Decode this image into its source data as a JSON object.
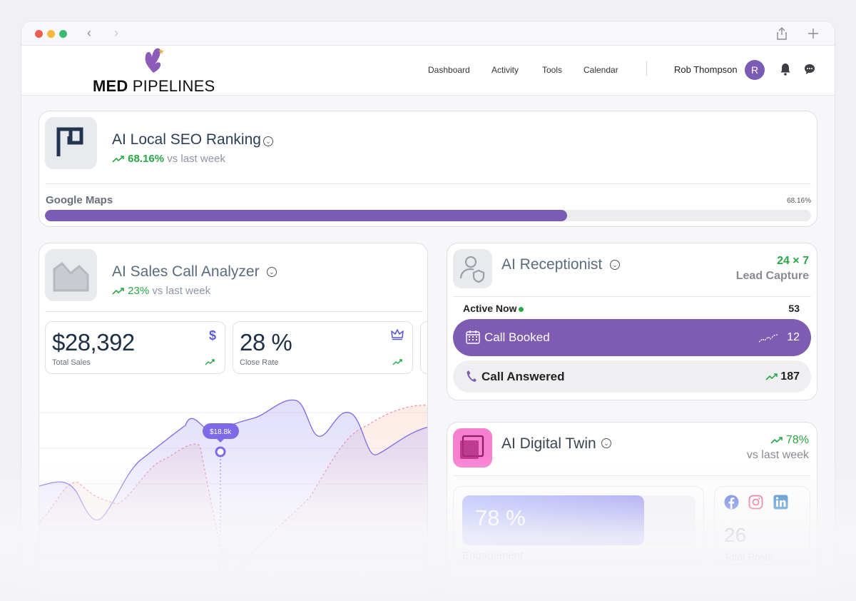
{
  "nav": {
    "links": [
      "Dashboard",
      "Activity",
      "Tools",
      "Calendar"
    ],
    "user_name": "Rob Thompson",
    "avatar_initial": "R"
  },
  "logo": {
    "bold": "MED",
    "rest": " PIPELINES"
  },
  "seo": {
    "title": "AI Local SEO Ranking",
    "trend_pct": "68.16%",
    "trend_text": " vs last week",
    "row_label": "Google Maps",
    "row_value": "68.16%",
    "row_fraction": 0.6816
  },
  "sales": {
    "title": "AI Sales Call Analyzer",
    "trend_pct": "23%",
    "trend_text": " vs last week",
    "kpis": [
      {
        "value": "$28,392",
        "label": "Total Sales",
        "icon": "dollar-icon"
      },
      {
        "value": "28 %",
        "label": "Close Rate",
        "icon": "crown-icon"
      }
    ],
    "tooltip": "$18.8k"
  },
  "receptionist": {
    "title": "AI Receptionist",
    "right_big": "24 × 7",
    "right_sub": "Lead Capture",
    "active_label": "Active Now",
    "active_count": "53",
    "booked_label": "Call Booked",
    "booked_count": "12",
    "answered_label": "Call Answered",
    "answered_count": "187"
  },
  "twin": {
    "title": "AI Digital Twin",
    "right_big": "78%",
    "right_sub": "vs last week",
    "engagement_value": "78 %",
    "engagement_fraction": 0.78,
    "engagement_label": "Engagement",
    "posts_value": "26",
    "posts_label": "Total Posts"
  },
  "colors": {
    "brand_purple": "#7b5cb5",
    "trend_green": "#28a745",
    "series_primary": "#7d6ae6",
    "series_secondary": "#f08c9a"
  }
}
